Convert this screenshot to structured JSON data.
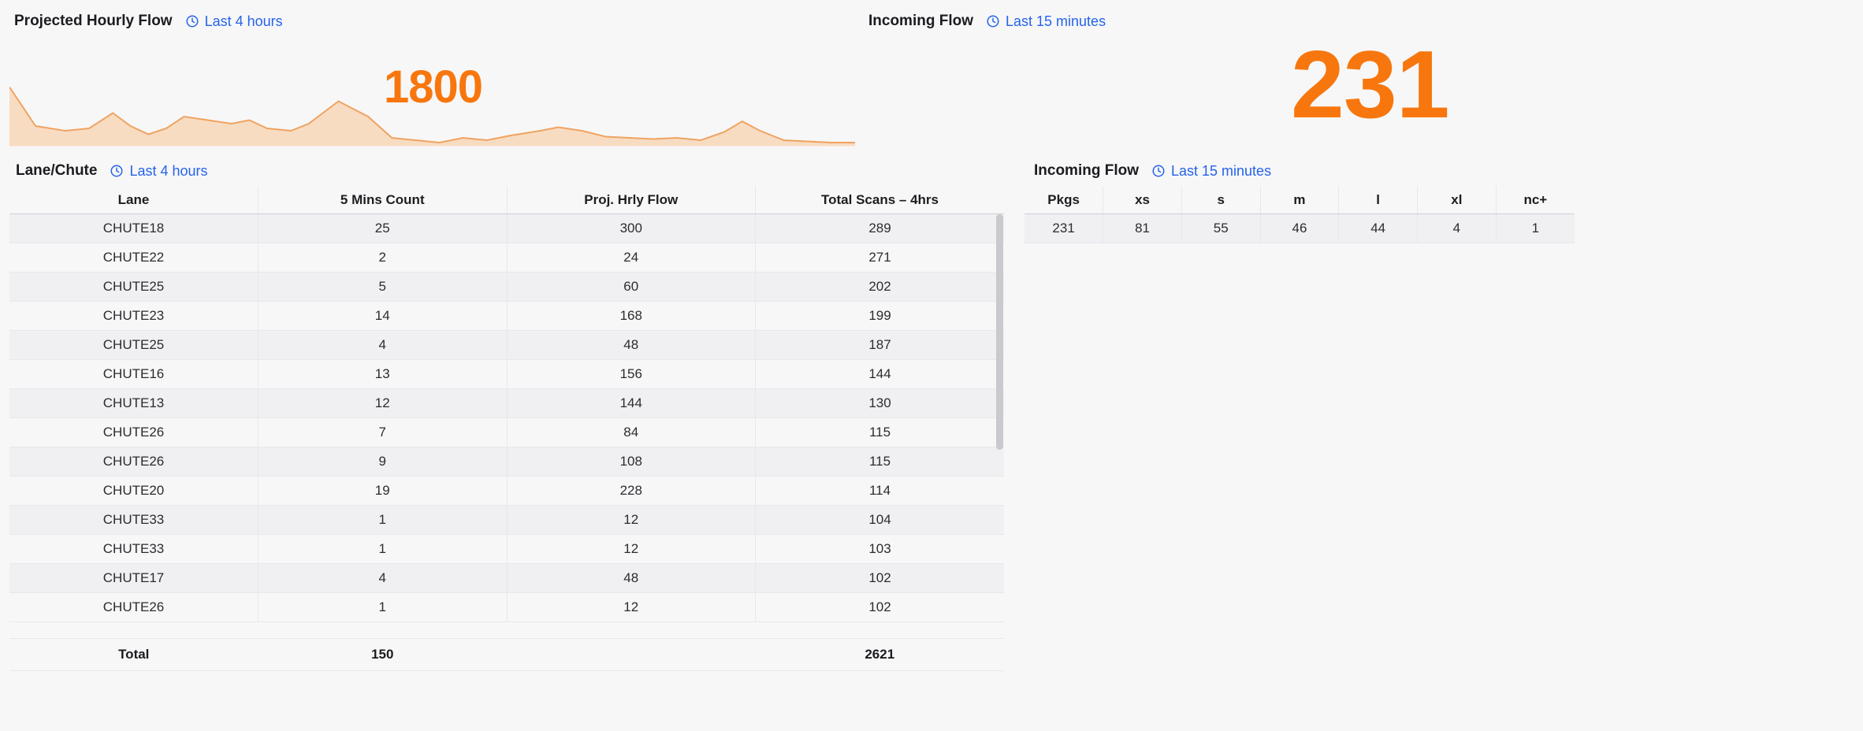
{
  "colors": {
    "accent_orange": "#f7770e",
    "link_blue": "#2563eb",
    "chart_fill": "#f8dcc2",
    "chart_line": "#efa360",
    "page_bg": "#f7f7f8"
  },
  "top_left": {
    "title": "Projected Hourly Flow",
    "badge": "Last 4 hours",
    "big_value": "1800"
  },
  "top_right": {
    "title": "Incoming Flow",
    "badge": "Last 15 minutes",
    "big_value": "231"
  },
  "lane_section": {
    "title": "Lane/Chute",
    "badge": "Last 4 hours",
    "table": {
      "headers": [
        "Lane",
        "5 Mins Count",
        "Proj. Hrly Flow",
        "Total Scans – 4hrs"
      ],
      "rows": [
        [
          "CHUTE18",
          "25",
          "300",
          "289"
        ],
        [
          "CHUTE22",
          "2",
          "24",
          "271"
        ],
        [
          "CHUTE25",
          "5",
          "60",
          "202"
        ],
        [
          "CHUTE23",
          "14",
          "168",
          "199"
        ],
        [
          "CHUTE25",
          "4",
          "48",
          "187"
        ],
        [
          "CHUTE16",
          "13",
          "156",
          "144"
        ],
        [
          "CHUTE13",
          "12",
          "144",
          "130"
        ],
        [
          "CHUTE26",
          "7",
          "84",
          "115"
        ],
        [
          "CHUTE26",
          "9",
          "108",
          "115"
        ],
        [
          "CHUTE20",
          "19",
          "228",
          "114"
        ],
        [
          "CHUTE33",
          "1",
          "12",
          "104"
        ],
        [
          "CHUTE33",
          "1",
          "12",
          "103"
        ],
        [
          "CHUTE17",
          "4",
          "48",
          "102"
        ],
        [
          "CHUTE26",
          "1",
          "12",
          "102"
        ]
      ],
      "total_row": [
        "Total",
        "150",
        "",
        "2621"
      ]
    }
  },
  "incoming_section": {
    "title": "Incoming Flow",
    "badge": "Last 15 minutes",
    "table": {
      "headers": [
        "Pkgs",
        "xs",
        "s",
        "m",
        "l",
        "xl",
        "nc+"
      ],
      "rows": [
        [
          "231",
          "81",
          "55",
          "46",
          "44",
          "4",
          "1"
        ]
      ]
    }
  },
  "chart_data": {
    "type": "area",
    "title": "Projected Hourly Flow",
    "label_value": 1800,
    "legend": "none",
    "axes": "none (sparkline)",
    "x": [
      0,
      22,
      47,
      67,
      87,
      102,
      117,
      132,
      147,
      167,
      187,
      202,
      217,
      237,
      252,
      277,
      302,
      322,
      342,
      362,
      382,
      402,
      422,
      447,
      462,
      482,
      502,
      522,
      542,
      562,
      582,
      602,
      617,
      632,
      652,
      672,
      692,
      712
    ],
    "y_rel": [
      50,
      17,
      13,
      15,
      28,
      17,
      10,
      15,
      25,
      22,
      19,
      22,
      15,
      13,
      19,
      38,
      25,
      7,
      5,
      3,
      7,
      5,
      9,
      13,
      16,
      13,
      8,
      7,
      6,
      7,
      5,
      12,
      21,
      13,
      5,
      4,
      3,
      3
    ],
    "ylim": [
      0,
      65
    ]
  }
}
